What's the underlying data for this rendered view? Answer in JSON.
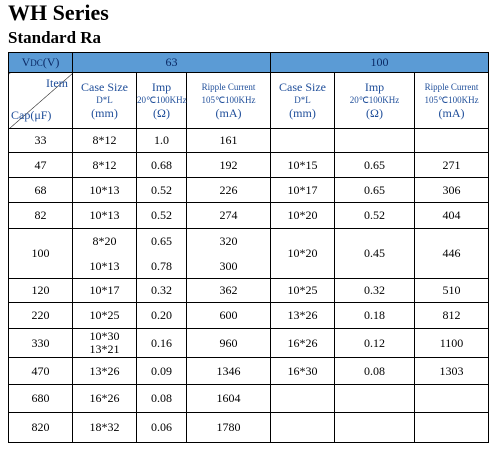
{
  "header": {
    "title": "WH Series",
    "subtitle": "Standard Ra"
  },
  "table": {
    "voltage_label": {
      "main": "V",
      "sub": "DC",
      "unit": "(V)"
    },
    "voltages": [
      "63",
      "100"
    ],
    "item_label": "Item",
    "cap_label": "Cap(μF)",
    "columns": [
      [
        "Case Size",
        "D*L",
        "(mm)"
      ],
      [
        "Imp",
        "20℃100KHz",
        "(Ω)"
      ],
      [
        "Ripple Current",
        "105℃100KHz",
        "(mA)"
      ]
    ],
    "rows": [
      {
        "cap": "33",
        "cells": [
          [
            "8*12"
          ],
          [
            "1.0"
          ],
          [
            "161"
          ]
        ]
      },
      {
        "cap": "47",
        "cells": [
          [
            "8*12"
          ],
          [
            "0.68"
          ],
          [
            "192"
          ],
          [
            "10*15"
          ],
          [
            "0.65"
          ],
          [
            "271"
          ]
        ]
      },
      {
        "cap": "68",
        "cells": [
          [
            "10*13"
          ],
          [
            "0.52"
          ],
          [
            "226"
          ],
          [
            "10*17"
          ],
          [
            "0.65"
          ],
          [
            "306"
          ]
        ]
      },
      {
        "cap": "82",
        "cells": [
          [
            "10*13"
          ],
          [
            "0.52"
          ],
          [
            "274"
          ],
          [
            "10*20"
          ],
          [
            "0.52"
          ],
          [
            "404"
          ]
        ]
      },
      {
        "cap": "100",
        "cells": [
          [
            "8*20",
            "10*13"
          ],
          [
            "0.65",
            "0.78"
          ],
          [
            "320",
            "300"
          ],
          [
            "10*20"
          ],
          [
            "0.45"
          ],
          [
            "446"
          ]
        ]
      },
      {
        "cap": "120",
        "cells": [
          [
            "10*17"
          ],
          [
            "0.32"
          ],
          [
            "362"
          ],
          [
            "10*25"
          ],
          [
            "0.32"
          ],
          [
            "510"
          ]
        ]
      },
      {
        "cap": "220",
        "cells": [
          [
            "10*25"
          ],
          [
            "0.20"
          ],
          [
            "600"
          ],
          [
            "13*26"
          ],
          [
            "0.18"
          ],
          [
            "812"
          ]
        ]
      },
      {
        "cap": "330",
        "cells": [
          [
            "10*30",
            "13*21"
          ],
          [
            "0.16"
          ],
          [
            "960"
          ],
          [
            "16*26"
          ],
          [
            "0.12"
          ],
          [
            "1100"
          ]
        ]
      },
      {
        "cap": "470",
        "cells": [
          [
            "13*26"
          ],
          [
            "0.09"
          ],
          [
            "1346"
          ],
          [
            "16*30"
          ],
          [
            "0.08"
          ],
          [
            "1303"
          ]
        ]
      },
      {
        "cap": "680",
        "cells": [
          [
            "16*26"
          ],
          [
            "0.08"
          ],
          [
            "1604"
          ]
        ]
      },
      {
        "cap": "820",
        "cells": [
          [
            "18*32"
          ],
          [
            "0.06"
          ],
          [
            "1780"
          ]
        ]
      }
    ]
  }
}
